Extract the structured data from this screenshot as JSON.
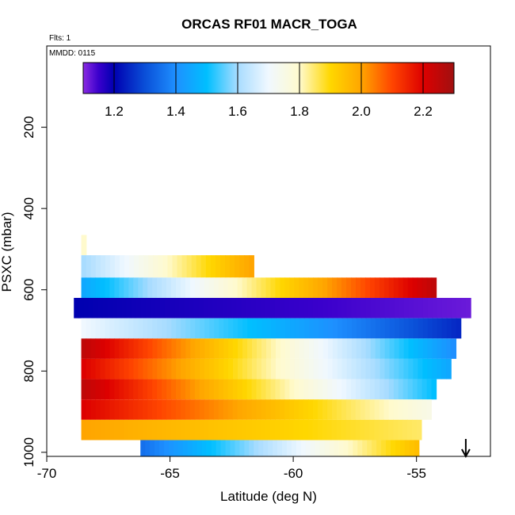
{
  "chart_data": {
    "type": "heatmap",
    "title": "ORCAS RF01 MACR_TOGA",
    "annotations": {
      "flights": "Flts: 1",
      "date": "MMDD: 0115"
    },
    "xlabel": "Latitude (deg N)",
    "ylabel": "PSXC (mbar)",
    "xlim": [
      -70,
      -52
    ],
    "ylim": [
      1010,
      0
    ],
    "x_ticks": [
      -70,
      -65,
      -60,
      -55
    ],
    "x_tick_labels": [
      "-70",
      "-65",
      "-60",
      "-55"
    ],
    "y_ticks": [
      200,
      400,
      600,
      800,
      1000
    ],
    "y_tick_labels": [
      "200",
      "400",
      "600",
      "800",
      "1000"
    ],
    "colorbar": {
      "range": [
        1.1,
        2.3
      ],
      "ticks": [
        1.2,
        1.4,
        1.6,
        1.8,
        2.0,
        2.2
      ],
      "tick_labels": [
        "1.2",
        "1.4",
        "1.6",
        "1.8",
        "2.0",
        "2.2"
      ],
      "stops": [
        {
          "v": 1.1,
          "color": "#8a2be2"
        },
        {
          "v": 1.15,
          "color": "#3a00cc"
        },
        {
          "v": 1.2,
          "color": "#0000b0"
        },
        {
          "v": 1.3,
          "color": "#0a4fd8"
        },
        {
          "v": 1.4,
          "color": "#1e90ff"
        },
        {
          "v": 1.5,
          "color": "#00bfff"
        },
        {
          "v": 1.6,
          "color": "#a8dcff"
        },
        {
          "v": 1.7,
          "color": "#f0f8ff"
        },
        {
          "v": 1.8,
          "color": "#fffacd"
        },
        {
          "v": 1.9,
          "color": "#ffd700"
        },
        {
          "v": 2.0,
          "color": "#ffa500"
        },
        {
          "v": 2.1,
          "color": "#ff4500"
        },
        {
          "v": 2.2,
          "color": "#dd0000"
        },
        {
          "v": 2.3,
          "color": "#a01010"
        }
      ]
    },
    "bands": [
      {
        "p_top": 465,
        "p_bot": 515,
        "x_start": -68.6,
        "x_end": -68.4,
        "v_start": 1.8,
        "v_end": 1.8
      },
      {
        "p_top": 515,
        "p_bot": 570,
        "x_start": -68.6,
        "x_end": -61.6,
        "v_start": 1.6,
        "v_end": 2.0
      },
      {
        "p_top": 570,
        "p_bot": 620,
        "x_start": -68.6,
        "x_end": -54.2,
        "v_start": 1.45,
        "v_end": 2.25
      },
      {
        "p_top": 620,
        "p_bot": 670,
        "x_start": -68.9,
        "x_end": -52.8,
        "v_start": 1.2,
        "v_end": 1.12
      },
      {
        "p_top": 670,
        "p_bot": 720,
        "x_start": -68.6,
        "x_end": -53.2,
        "v_start": 1.7,
        "v_end": 1.25
      },
      {
        "p_top": 720,
        "p_bot": 770,
        "x_start": -68.6,
        "x_end": -53.4,
        "v_start": 2.25,
        "v_end": 1.4
      },
      {
        "p_top": 770,
        "p_bot": 820,
        "x_start": -68.6,
        "x_end": -53.6,
        "v_start": 2.2,
        "v_end": 1.45
      },
      {
        "p_top": 820,
        "p_bot": 870,
        "x_start": -68.6,
        "x_end": -54.2,
        "v_start": 2.25,
        "v_end": 1.5
      },
      {
        "p_top": 870,
        "p_bot": 920,
        "x_start": -68.6,
        "x_end": -54.4,
        "v_start": 2.2,
        "v_end": 1.75
      },
      {
        "p_top": 920,
        "p_bot": 970,
        "x_start": -68.6,
        "x_end": -54.8,
        "v_start": 2.0,
        "v_end": 1.85
      },
      {
        "p_top": 970,
        "p_bot": 1010,
        "x_start": -66.2,
        "x_end": -54.9,
        "v_start": 1.35,
        "v_end": 1.95
      }
    ],
    "arrow": {
      "x": -53.0,
      "direction": "down"
    }
  }
}
